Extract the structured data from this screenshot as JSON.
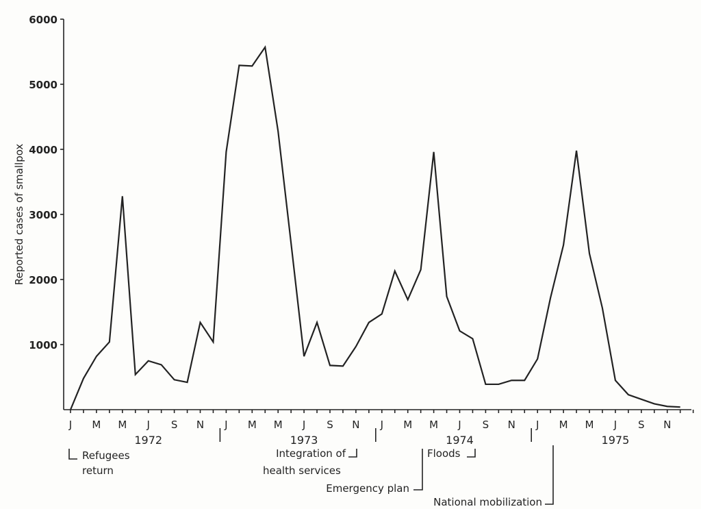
{
  "chart_data": {
    "type": "line",
    "title": "",
    "xlabel": "",
    "ylabel": "Reported cases of smallpox",
    "ylim": [
      0,
      6000
    ],
    "yticks": [
      1000,
      2000,
      3000,
      4000,
      5000,
      6000
    ],
    "grid": false,
    "years": [
      "1972",
      "1973",
      "1974",
      "1975"
    ],
    "month_tick_labels": [
      "J",
      "M",
      "M",
      "J",
      "S",
      "N"
    ],
    "series": [
      {
        "x": [
          "1972-01",
          "1972-02",
          "1972-03",
          "1972-04",
          "1972-05",
          "1972-06",
          "1972-07",
          "1972-08",
          "1972-09",
          "1972-10",
          "1972-11",
          "1972-12",
          "1973-01",
          "1973-02",
          "1973-03",
          "1973-04",
          "1973-05",
          "1973-06",
          "1973-07",
          "1973-08",
          "1973-09",
          "1973-10",
          "1973-11",
          "1973-12",
          "1974-01",
          "1974-02",
          "1974-03",
          "1974-04",
          "1974-05",
          "1974-06",
          "1974-07",
          "1974-08",
          "1974-09",
          "1974-10",
          "1974-11",
          "1974-12",
          "1975-01",
          "1975-02",
          "1975-03",
          "1975-04",
          "1975-05",
          "1975-06",
          "1975-07",
          "1975-08",
          "1975-09",
          "1975-10",
          "1975-11",
          "1975-12"
        ],
        "values": [
          0,
          480,
          820,
          1040,
          3280,
          540,
          750,
          690,
          460,
          420,
          1340,
          1040,
          3960,
          5290,
          5280,
          5570,
          4280,
          2560,
          820,
          1340,
          680,
          670,
          970,
          1340,
          1470,
          2130,
          1690,
          2150,
          3960,
          1740,
          1210,
          1090,
          390,
          390,
          450,
          450,
          780,
          1720,
          2530,
          3980,
          2400,
          1560,
          450,
          230,
          160,
          90,
          50,
          40
        ]
      }
    ],
    "annotations": [
      {
        "lines": [
          "Refugees",
          "return"
        ],
        "month": "1972-01"
      },
      {
        "lines": [
          "Integration of",
          "health services"
        ],
        "month": "1973-11"
      },
      {
        "lines": [
          "Emergency plan"
        ],
        "month": "1974-04"
      },
      {
        "lines": [
          "Floods"
        ],
        "month": "1974-07"
      },
      {
        "lines": [
          "National mobilization"
        ],
        "month": "1975-02"
      }
    ]
  }
}
